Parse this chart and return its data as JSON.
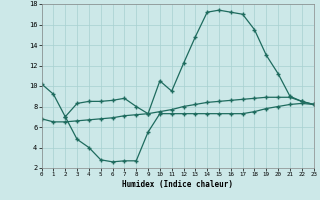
{
  "bg_color": "#cce8e8",
  "grid_color": "#a8d0d0",
  "line_color": "#1e6b5e",
  "xlabel": "Humidex (Indice chaleur)",
  "xlim": [
    0,
    23
  ],
  "ylim": [
    2,
    18
  ],
  "xticks": [
    0,
    1,
    2,
    3,
    4,
    5,
    6,
    7,
    8,
    9,
    10,
    11,
    12,
    13,
    14,
    15,
    16,
    17,
    18,
    19,
    20,
    21,
    22,
    23
  ],
  "yticks": [
    2,
    4,
    6,
    8,
    10,
    12,
    14,
    16,
    18
  ],
  "series": [
    {
      "x": [
        0,
        1,
        2,
        3,
        4,
        5,
        6,
        7,
        8,
        9,
        10,
        11,
        12,
        13,
        14,
        15,
        16,
        17,
        18,
        19,
        20,
        21,
        22,
        23
      ],
      "y": [
        10.2,
        9.2,
        7.0,
        8.3,
        8.5,
        8.5,
        8.6,
        8.8,
        8.0,
        7.3,
        10.5,
        9.5,
        12.2,
        14.8,
        17.2,
        17.4,
        17.2,
        17.0,
        15.5,
        13.0,
        11.2,
        9.0,
        8.5,
        8.2
      ]
    },
    {
      "x": [
        0,
        1,
        2,
        3,
        4,
        5,
        6,
        7,
        8,
        9,
        10,
        11,
        12,
        13,
        14,
        15,
        16,
        17,
        18,
        19,
        20,
        21,
        22,
        23
      ],
      "y": [
        6.8,
        6.5,
        6.5,
        6.6,
        6.7,
        6.8,
        6.9,
        7.1,
        7.2,
        7.3,
        7.5,
        7.7,
        8.0,
        8.2,
        8.4,
        8.5,
        8.6,
        8.7,
        8.8,
        8.9,
        8.9,
        8.9,
        8.5,
        8.2
      ]
    },
    {
      "x": [
        2,
        3,
        4,
        5,
        6,
        7,
        8,
        9,
        10,
        11,
        12,
        13,
        14,
        15,
        16,
        17,
        18,
        19,
        20,
        21,
        22,
        23
      ],
      "y": [
        7.0,
        4.8,
        4.0,
        2.8,
        2.6,
        2.7,
        2.7,
        5.5,
        7.3,
        7.3,
        7.3,
        7.3,
        7.3,
        7.3,
        7.3,
        7.3,
        7.5,
        7.8,
        8.0,
        8.2,
        8.3,
        8.2
      ]
    }
  ]
}
